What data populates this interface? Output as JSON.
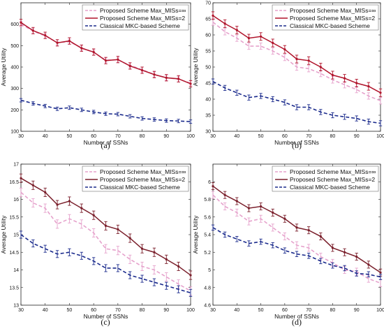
{
  "chart_data": [
    {
      "type": "line",
      "caption": "(a)",
      "xlabel": "Number of SSNs",
      "ylabel": "Average Utility",
      "xlim": [
        30,
        100
      ],
      "ylim": [
        100,
        700
      ],
      "xticks": [
        "30",
        "40",
        "50",
        "60",
        "70",
        "80",
        "90",
        "100"
      ],
      "yticks": [
        "100",
        "200",
        "300",
        "400",
        "500",
        "600"
      ],
      "x": [
        30,
        35,
        40,
        45,
        50,
        55,
        60,
        65,
        70,
        75,
        80,
        85,
        90,
        95,
        100
      ],
      "legend_position": "top-right",
      "series": [
        {
          "name": "Proposed Scheme Max_MISs=∞",
          "style": "pink-dashed",
          "values": [
            600,
            568,
            545,
            515,
            518,
            490,
            468,
            433,
            433,
            408,
            388,
            365,
            350,
            343,
            325
          ],
          "err": 12
        },
        {
          "name": "Proposed Scheme Max_MISs=2",
          "style": "red-solid",
          "values": [
            608,
            570,
            548,
            513,
            522,
            488,
            470,
            430,
            435,
            405,
            385,
            365,
            350,
            345,
            322
          ],
          "err": 15
        },
        {
          "name": "Classical MKC-based Scheme",
          "style": "navy-dashed",
          "values": [
            245,
            230,
            218,
            205,
            210,
            200,
            190,
            182,
            180,
            170,
            160,
            155,
            150,
            148,
            145
          ],
          "err": 8
        }
      ]
    },
    {
      "type": "line",
      "caption": "(b)",
      "xlabel": "Number of SSNs",
      "ylabel": "Average Utility",
      "xlim": [
        30,
        100
      ],
      "ylim": [
        30,
        70
      ],
      "xticks": [
        "30",
        "40",
        "50",
        "60",
        "70",
        "80",
        "90",
        "100"
      ],
      "yticks": [
        "30",
        "35",
        "40",
        "45",
        "50",
        "55",
        "60",
        "65",
        "70"
      ],
      "x": [
        30,
        35,
        40,
        45,
        50,
        55,
        60,
        65,
        70,
        75,
        80,
        85,
        90,
        95,
        100
      ],
      "legend_position": "top-right",
      "series": [
        {
          "name": "Proposed Scheme Max_MISs=∞",
          "style": "pink-dashed",
          "values": [
            64,
            61,
            59,
            56.5,
            56.5,
            55,
            53,
            50,
            49.5,
            48,
            46,
            44.5,
            43,
            41,
            39.5
          ],
          "err": 1.0
        },
        {
          "name": "Proposed Scheme Max_MISs=2",
          "style": "red-solid",
          "values": [
            66,
            63.5,
            61.5,
            59,
            59.5,
            57.5,
            55.5,
            52.5,
            52,
            50,
            47.5,
            46.5,
            45,
            44,
            42
          ],
          "err": 1.2
        },
        {
          "name": "Classical MKC-based Scheme",
          "style": "navy-dashed",
          "values": [
            45.5,
            43.5,
            42,
            40.5,
            41,
            40,
            39,
            37.5,
            37.5,
            36,
            35,
            34.5,
            34,
            33,
            32.5
          ],
          "err": 0.8
        }
      ]
    },
    {
      "type": "line",
      "caption": "(c)",
      "xlabel": "Number of SSNs",
      "ylabel": "Average Utility",
      "xlim": [
        30,
        100
      ],
      "ylim": [
        13,
        17
      ],
      "xticks": [
        "30",
        "40",
        "50",
        "60",
        "70",
        "80",
        "90",
        "100"
      ],
      "yticks": [
        "13",
        "13.5",
        "14",
        "14.5",
        "15",
        "15.5",
        "16",
        "16.5",
        "17"
      ],
      "x": [
        30,
        35,
        40,
        45,
        50,
        55,
        60,
        65,
        70,
        75,
        80,
        85,
        90,
        95,
        100
      ],
      "legend_position": "top-right",
      "series": [
        {
          "name": "Proposed Scheme Max_MISs=∞",
          "style": "pink-dashed",
          "values": [
            16.2,
            15.9,
            15.75,
            15.3,
            15.45,
            15.3,
            15.05,
            14.6,
            14.55,
            14.3,
            14.1,
            14.0,
            13.8,
            13.6,
            13.4
          ],
          "err": 0.12
        },
        {
          "name": "Proposed Scheme Max_MISs=2",
          "style": "darkred-solid",
          "values": [
            16.6,
            16.4,
            16.2,
            15.85,
            15.95,
            15.75,
            15.55,
            15.25,
            15.15,
            14.9,
            14.6,
            14.5,
            14.3,
            14.1,
            13.85
          ],
          "err": 0.12
        },
        {
          "name": "Classical MKC-based Scheme",
          "style": "navy-dashed",
          "values": [
            15.0,
            14.75,
            14.6,
            14.45,
            14.5,
            14.4,
            14.25,
            14.05,
            14.05,
            13.85,
            13.75,
            13.65,
            13.55,
            13.45,
            13.35
          ],
          "err": 0.1
        }
      ]
    },
    {
      "type": "line",
      "caption": "(d)",
      "xlabel": "Number of SSNs",
      "ylabel": "Average Utility",
      "xlim": [
        30,
        100
      ],
      "ylim": [
        4.6,
        6.2
      ],
      "xticks": [
        "30",
        "40",
        "50",
        "60",
        "70",
        "80",
        "90",
        "100"
      ],
      "yticks": [
        "4.6",
        "4.8",
        "5",
        "5.2",
        "5.4",
        "5.6",
        "5.8",
        "6"
      ],
      "x": [
        30,
        35,
        40,
        45,
        50,
        55,
        60,
        65,
        70,
        75,
        80,
        85,
        90,
        95,
        100
      ],
      "legend_position": "top-right",
      "series": [
        {
          "name": "Proposed Scheme Max_MISs=∞",
          "style": "pink-dashed",
          "values": [
            5.85,
            5.72,
            5.65,
            5.55,
            5.58,
            5.48,
            5.38,
            5.28,
            5.25,
            5.15,
            5.08,
            5.0,
            4.98,
            4.9,
            4.85
          ],
          "err": 0.04
        },
        {
          "name": "Proposed Scheme Max_MISs=2",
          "style": "darkred-solid",
          "values": [
            5.95,
            5.85,
            5.78,
            5.7,
            5.72,
            5.65,
            5.58,
            5.48,
            5.45,
            5.38,
            5.25,
            5.2,
            5.15,
            5.06,
            4.97
          ],
          "err": 0.04
        },
        {
          "name": "Classical MKC-based Scheme",
          "style": "navy-dashed",
          "values": [
            5.48,
            5.4,
            5.35,
            5.3,
            5.32,
            5.28,
            5.22,
            5.18,
            5.16,
            5.1,
            5.05,
            5.02,
            4.96,
            4.95,
            4.92
          ],
          "err": 0.03
        }
      ]
    }
  ],
  "colors": {
    "pink-dashed": "#e6a2cc",
    "red-solid": "#b0132a",
    "darkred-solid": "#7a1f2b",
    "navy-dashed": "#1a2a8c"
  }
}
